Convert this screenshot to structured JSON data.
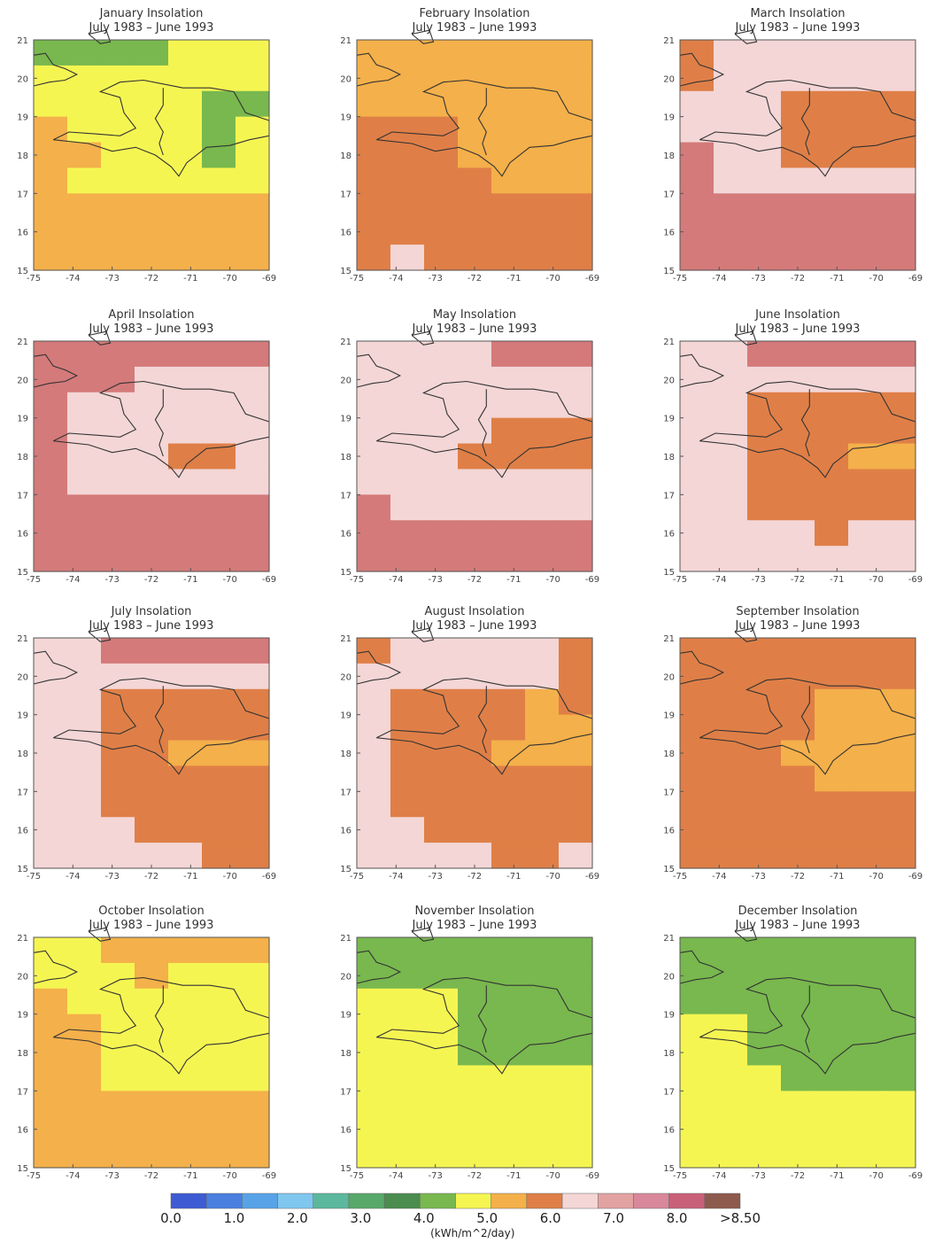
{
  "period": "July 1983  –  June 1993",
  "x_ticks": [
    "-75",
    "-74",
    "-73",
    "-72",
    "-71",
    "-70",
    "-69"
  ],
  "y_ticks": [
    "21",
    "20",
    "19",
    "18",
    "17",
    "16",
    "15"
  ],
  "colorbar": {
    "labels": [
      "0.0",
      "1.0",
      "2.0",
      "3.0",
      "4.0",
      "5.0",
      "6.0",
      "7.0",
      "8.0",
      ">8.50"
    ],
    "unit": "(kWh/m^2/day)",
    "colors": [
      "#3d5bd3",
      "#4a7fe0",
      "#58a3e8",
      "#7fc7ef",
      "#5cb89c",
      "#58a869",
      "#4b8c4f",
      "#78b84e",
      "#f5f552",
      "#f4b04a",
      "#df7f47",
      "#f4d6d6",
      "#e3a2a2",
      "#d8889a",
      "#c8607a",
      "#8e5a4d"
    ]
  },
  "chart_data": {
    "type": "heatmap",
    "lon_range": [
      -75,
      -69
    ],
    "lat_range": [
      15,
      21
    ],
    "value_classes": {
      "G": "4.0-4.5",
      "Y": "4.5-5.0",
      "O": "5.0-5.5",
      "R": "5.5-6.0",
      "P": "6.0-6.5",
      "M": "6.5-7.0"
    },
    "class_colors": {
      "G": "#78b84e",
      "Y": "#f5f552",
      "O": "#f4b04a",
      "R": "#df7f47",
      "P": "#f4d6d6",
      "M": "#d47a7a"
    },
    "maps": [
      {
        "title": "January Insolation",
        "grid": [
          "GGGGYYY",
          "YYYYYYY",
          "YYYYYGG",
          "OYYYYGY",
          "OOYYYGY",
          "OYYYYYY",
          "OOOOOOO",
          "OOOOOOO",
          "OOOOOOO"
        ]
      },
      {
        "title": "February Insolation",
        "grid": [
          "OOOOOOO",
          "OOOOOOO",
          "OOOOOOO",
          "RRROOOO",
          "RRROOOO",
          "RRRROOO",
          "RRRRRRR",
          "RRRRRRR",
          "RPRRRRR"
        ]
      },
      {
        "title": "March Insolation",
        "grid": [
          "RPPPPPP",
          "RPPPPPP",
          "PPPRRRR",
          "PPPRRRR",
          "MPPRRRR",
          "MPPPPPP",
          "MMMMMMM",
          "MMMMMMM",
          "MMMMMMM"
        ]
      },
      {
        "title": "April Insolation",
        "grid": [
          "MMMMMMM",
          "MMMPPPP",
          "MPPPPPP",
          "MPPPPPP",
          "MPPPRRP",
          "MPPPPPP",
          "MMMMMMM",
          "MMMMMMM",
          "MMMMMMM"
        ]
      },
      {
        "title": "May Insolation",
        "grid": [
          "PPPPMMM",
          "PPPPPPP",
          "PPPPPPP",
          "PPPPRRR",
          "PPPRRRR",
          "PPPPPPP",
          "MPPPPPP",
          "MMMMMMM",
          "MMMMMMM"
        ]
      },
      {
        "title": "June Insolation",
        "grid": [
          "PPMMMMM",
          "PPPPPPP",
          "PPRRRRR",
          "PPRRRRR",
          "PPRRROO",
          "PPRRRRR",
          "PPRRRRR",
          "PPPPRPP",
          "PPPPPPP"
        ]
      },
      {
        "title": "July Insolation",
        "grid": [
          "PPMMMMM",
          "PPPPPPP",
          "PPRRRRR",
          "PPRRRRR",
          "PPRROOO",
          "PPRRRRR",
          "PPRRRRR",
          "PPPRRRR",
          "PPPPPRR"
        ]
      },
      {
        "title": "August Insolation",
        "grid": [
          "RPPPPPR",
          "PPPPPPR",
          "PRRRROR",
          "PRRRROO",
          "PRRROOO",
          "PRRRRRR",
          "PRRRRRR",
          "PPRRRRR",
          "PPPPRRP"
        ]
      },
      {
        "title": "September Insolation",
        "grid": [
          "RRRRRRR",
          "RRRRRRR",
          "RRRROOO",
          "RRRROOO",
          "RRROOOO",
          "RRRROOO",
          "RRRRRRR",
          "RRRRRRR",
          "RRRRRRR"
        ]
      },
      {
        "title": "October Insolation",
        "grid": [
          "YYOOOOO",
          "YYYOYYY",
          "OYYYYYY",
          "OOYYYYY",
          "OOYYYYY",
          "OOYYYYY",
          "OOOOOOO",
          "OOOOOOO",
          "OOOOOOO"
        ]
      },
      {
        "title": "November Insolation",
        "grid": [
          "GGGGGGG",
          "GGGGGGG",
          "YYYGGGG",
          "YYYGGGG",
          "YYYGGGG",
          "YYYYYYY",
          "YYYYYYY",
          "YYYYYYY",
          "YYYYYYY"
        ]
      },
      {
        "title": "December Insolation",
        "grid": [
          "GGGGGGG",
          "GGGGGGG",
          "GGGGGGG",
          "YYGGGGG",
          "YYGGGGG",
          "YYYGGGG",
          "YYYYYYY",
          "YYYYYYY",
          "YYYYYYY"
        ]
      }
    ]
  }
}
